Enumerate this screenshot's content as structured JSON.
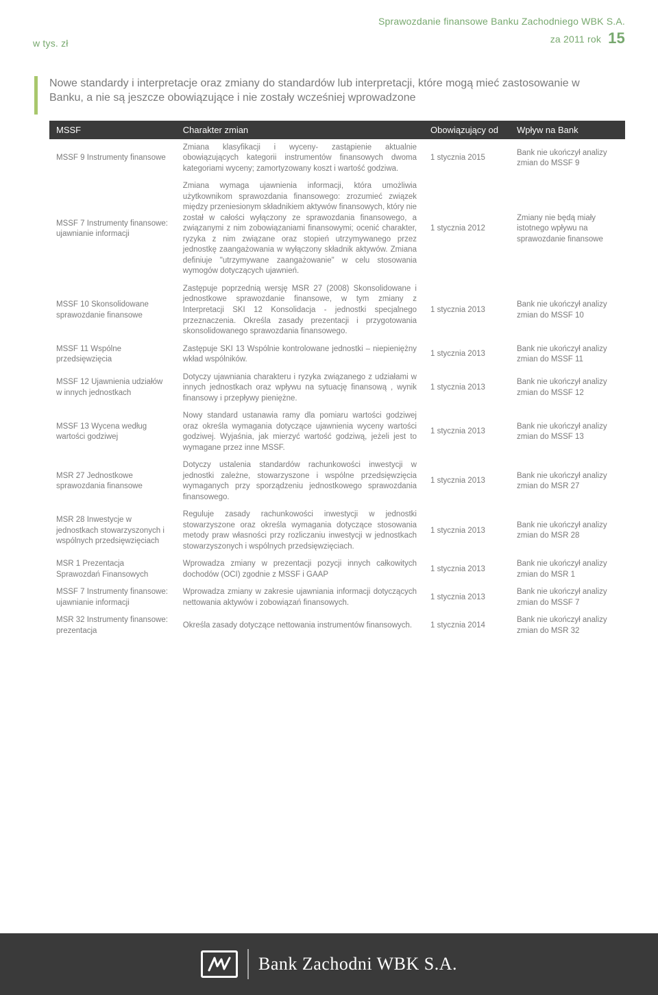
{
  "header": {
    "left": "w tys. zł",
    "right_line1": "Sprawozdanie finansowe Banku Zachodniego WBK S.A.",
    "right_year": "za 2011 rok",
    "page_number": "15"
  },
  "section_title": "Nowe standardy i interpretacje oraz zmiany do standardów lub interpretacji, które mogą mieć zastosowanie w Banku, a nie są jeszcze obowiązujące i nie zostały wcześniej wprowadzone",
  "table": {
    "head": {
      "c1": "MSSF",
      "c2": "Charakter zmian",
      "c3": "Obowiązujący od",
      "c4": "Wpływ na Bank"
    },
    "rows": [
      {
        "name": "MSSF 9 Instrumenty finansowe",
        "desc": "Zmiana klasyfikacji i wyceny- zastąpienie aktualnie obowiązujących kategorii instrumentów finansowych dwoma kategoriami wyceny; zamortyzowany koszt i wartość godziwa.",
        "date": "1 stycznia 2015",
        "effect": "Bank nie ukończył analizy zmian do MSSF 9"
      },
      {
        "name": "MSSF 7 Instrumenty finansowe: ujawnianie informacji",
        "desc": "Zmiana wymaga ujawnienia informacji, która umożliwia użytkownikom sprawozdania finansowego: zrozumieć związek między przeniesionym składnikiem aktywów finansowych, który nie został w całości wyłączony ze sprawozdania finansowego, a związanymi z nim zobowiązaniami finansowymi; ocenić charakter, ryzyka z nim związane oraz stopień utrzymywanego przez jednostkę zaangażowania w wyłączony składnik aktywów. Zmiana definiuje \"utrzymywane zaangażowanie\" w celu stosowania wymogów dotyczących ujawnień.",
        "date": "1 stycznia 2012",
        "effect": "Zmiany nie będą miały istotnego wpływu na sprawozdanie finansowe"
      },
      {
        "name": "MSSF 10 Skonsolidowane sprawozdanie finansowe",
        "desc": "Zastępuje poprzednią wersję MSR 27 (2008) Skonsolidowane i jednostkowe sprawozdanie finansowe, w tym zmiany z Interpretacji SKI 12 Konsolidacja - jednostki specjalnego przeznaczenia. Określa zasady prezentacji i przygotowania skonsolidowanego sprawozdania finansowego.",
        "date": "1 stycznia 2013",
        "effect": "Bank nie ukończył analizy zmian do MSSF 10"
      },
      {
        "name": "MSSF 11 Wspólne przedsięwzięcia",
        "desc": "Zastępuje SKI 13 Wspólnie kontrolowane jednostki – niepieniężny wkład wspólników.",
        "date": "1 stycznia 2013",
        "effect": "Bank nie ukończył analizy zmian do MSSF 11"
      },
      {
        "name": "MSSF 12 Ujawnienia udziałów w innych jednostkach",
        "desc": "Dotyczy ujawniania charakteru i ryzyka związanego z udziałami w innych jednostkach oraz wpływu na sytuację finansową , wynik finansowy i przepływy pieniężne.",
        "date": "1 stycznia 2013",
        "effect": "Bank nie ukończył analizy zmian do MSSF 12"
      },
      {
        "name": "MSSF 13 Wycena według wartości godziwej",
        "desc": "Nowy standard ustanawia ramy dla pomiaru wartości godziwej oraz określa wymagania dotyczące ujawnienia wyceny wartości godziwej. Wyjaśnia, jak mierzyć wartość godziwą, jeżeli jest to wymagane przez inne MSSF.",
        "date": "1 stycznia 2013",
        "effect": "Bank nie ukończył analizy zmian do MSSF 13"
      },
      {
        "name": "MSR 27 Jednostkowe sprawozdania finansowe",
        "desc": "Dotyczy ustalenia standardów rachunkowości inwestycji w jednostki zależne, stowarzyszone i wspólne przedsięwzięcia wymaganych przy sporządzeniu jednostkowego sprawozdania finansowego.",
        "date": "1 stycznia 2013",
        "effect": "Bank nie ukończył analizy zmian do MSR 27"
      },
      {
        "name": "MSR 28 Inwestycje w jednostkach stowarzyszonych i wspólnych przedsięwzięciach",
        "desc": "Reguluje zasady rachunkowości inwestycji w jednostki stowarzyszone oraz określa wymagania dotyczące stosowania metody praw własności przy rozliczaniu inwestycji w jednostkach stowarzyszonych i wspólnych przedsięwzięciach.",
        "date": "1 stycznia 2013",
        "effect": "Bank nie ukończył analizy zmian do MSR 28"
      },
      {
        "name": "MSR 1 Prezentacja Sprawozdań Finansowych",
        "desc": "Wprowadza zmiany w prezentacji pozycji innych całkowitych dochodów (OCI) zgodnie z MSSF i GAAP",
        "date": "1 stycznia 2013",
        "effect": "Bank nie ukończył analizy zmian do MSR 1"
      },
      {
        "name": "MSSF 7 Instrumenty finansowe: ujawnianie informacji",
        "desc": "Wprowadza zmiany w zakresie ujawniania informacji dotyczących nettowania aktywów i zobowiązań finansowych.",
        "date": "1 stycznia 2013",
        "effect": "Bank nie ukończył analizy zmian do MSSF 7"
      },
      {
        "name": "MSR 32 Instrumenty finansowe: prezentacja",
        "desc": "Określa zasady dotyczące nettowania instrumentów finansowych.",
        "date": "1 stycznia 2014",
        "effect": "Bank nie ukończył analizy zmian do MSR 32"
      }
    ]
  },
  "footer": {
    "brand": "Bank Zachodni WBK S.A."
  },
  "colors": {
    "green_accent": "#a8c76c",
    "green_text": "#77a86e",
    "dark": "#3a3a3a",
    "body_text": "#7a7a7a",
    "white": "#ffffff"
  }
}
